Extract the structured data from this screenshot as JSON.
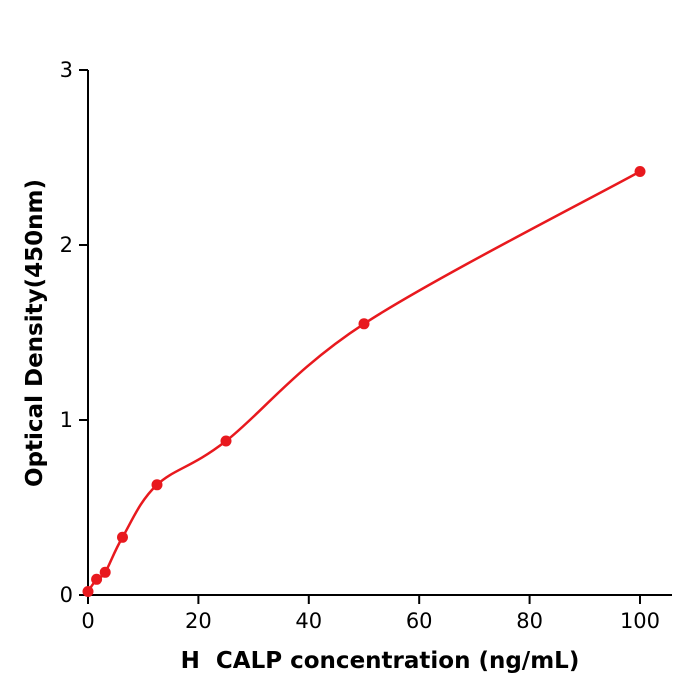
{
  "chart_data": {
    "type": "scatter",
    "title": "",
    "xlabel": "H  CALP concentration (ng/mL)",
    "ylabel": "Optical Density(450nm)",
    "x": [
      0,
      1.56,
      3.125,
      6.25,
      12.5,
      25,
      50,
      100
    ],
    "y": [
      0.02,
      0.09,
      0.13,
      0.33,
      0.63,
      0.88,
      1.55,
      2.42
    ],
    "xlim": [
      0,
      105.8
    ],
    "ylim": [
      0,
      3
    ],
    "xticks": [
      0,
      20,
      40,
      60,
      80,
      100
    ],
    "yticks": [
      0,
      1,
      2,
      3
    ],
    "grid": false,
    "legend": null,
    "curve": "smooth fit line through points",
    "point_radius": 5.5,
    "point_color": "#e8191e",
    "line_color": "#e8191e",
    "axis_color": "#000000",
    "text_color": "#000000",
    "tick_font_size": 21
  }
}
